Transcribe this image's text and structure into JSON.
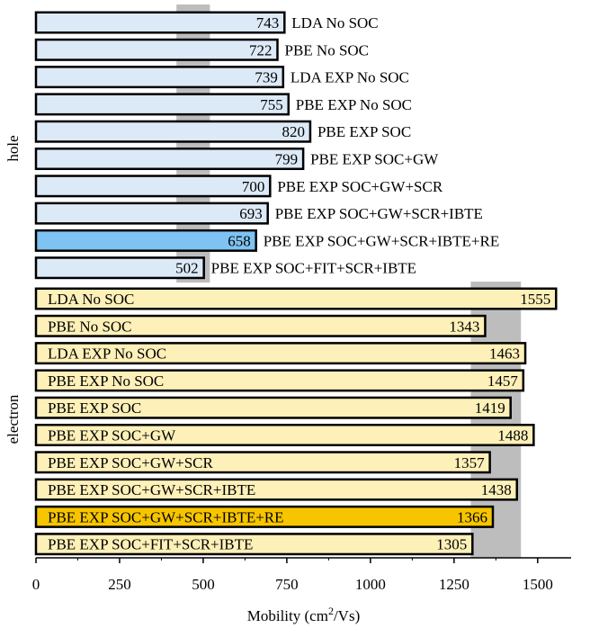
{
  "chart_data": {
    "type": "bar",
    "orientation": "horizontal",
    "xlabel": "Mobility (cm²/Vs)",
    "xlabel_parts": [
      "Mobility (cm",
      "2",
      "/Vs)"
    ],
    "xlim": [
      0,
      1600
    ],
    "xticks": [
      0,
      250,
      500,
      750,
      1000,
      1250,
      1500
    ],
    "xtick_labels": [
      "0",
      "250",
      "500",
      "750",
      "1000",
      "1250",
      "1500"
    ],
    "grid": false,
    "panels": [
      {
        "name": "hole",
        "categories": [
          "LDA No SOC",
          "PBE No SOC",
          "LDA EXP No SOC",
          "PBE EXP No SOC",
          "PBE EXP SOC",
          "PBE EXP SOC+GW",
          "PBE EXP SOC+GW+SCR",
          "PBE EXP SOC+GW+SCR+IBTE",
          "PBE EXP SOC+GW+SCR+IBTE+RE",
          "PBE EXP SOC+FIT+SCR+IBTE"
        ],
        "values": [
          743,
          722,
          739,
          755,
          820,
          799,
          700,
          693,
          658,
          502
        ],
        "highlight_index": 8,
        "experimental_range": [
          420,
          520
        ],
        "label_position": "outside",
        "bar_color": "#dce9f7",
        "highlight_color": "#7ec3f2"
      },
      {
        "name": "electron",
        "categories": [
          "LDA No SOC",
          "PBE No SOC",
          "LDA EXP No SOC",
          "PBE EXP No SOC",
          "PBE EXP SOC",
          "PBE EXP SOC+GW",
          "PBE EXP SOC+GW+SCR",
          "PBE EXP SOC+GW+SCR+IBTE",
          "PBE EXP SOC+GW+SCR+IBTE+RE",
          "PBE EXP SOC+FIT+SCR+IBTE"
        ],
        "values": [
          1555,
          1343,
          1463,
          1457,
          1419,
          1488,
          1357,
          1438,
          1366,
          1305
        ],
        "highlight_index": 8,
        "experimental_range": [
          1300,
          1450
        ],
        "label_position": "inside",
        "bar_color": "#fdf0b8",
        "highlight_color": "#f7c500"
      }
    ],
    "colors": {
      "bar_stroke": "#000000",
      "experimental_band": "#bdbdbd"
    }
  }
}
